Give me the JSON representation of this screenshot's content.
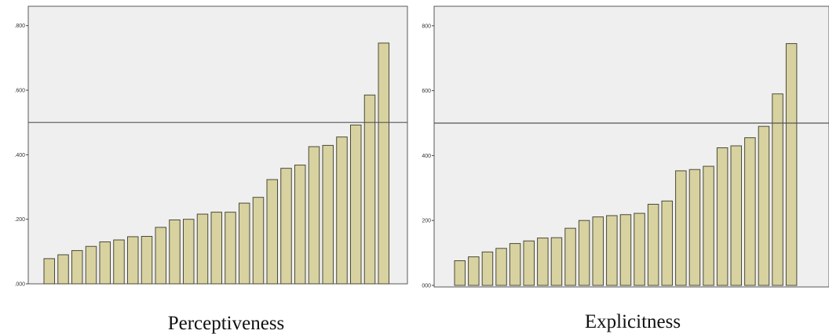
{
  "chart_data": [
    {
      "type": "bar",
      "title": "Perceptiveness",
      "ylim": [
        0,
        0.86
      ],
      "yticks": [
        ".000",
        ".200",
        ".400",
        ".600",
        ".800"
      ],
      "ytick_values": [
        0,
        0.2,
        0.4,
        0.6,
        0.8
      ],
      "reference_line": 0.5,
      "grid": false,
      "values": [
        0.078,
        0.09,
        0.103,
        0.116,
        0.13,
        0.136,
        0.146,
        0.147,
        0.175,
        0.198,
        0.2,
        0.216,
        0.222,
        0.222,
        0.25,
        0.268,
        0.323,
        0.358,
        0.368,
        0.425,
        0.429,
        0.455,
        0.492,
        0.585,
        0.746
      ]
    },
    {
      "type": "bar",
      "title": "Explicitness",
      "ylim": [
        0,
        860
      ],
      "yticks": [
        "000",
        "200",
        "400",
        "600",
        "800"
      ],
      "ytick_values": [
        0,
        200,
        400,
        600,
        800
      ],
      "reference_line": 500,
      "grid": false,
      "values": [
        76,
        88,
        103,
        114,
        129,
        137,
        146,
        147,
        176,
        200,
        211,
        215,
        218,
        222,
        250,
        260,
        353,
        357,
        367,
        424,
        430,
        455,
        490,
        590,
        745
      ]
    }
  ]
}
